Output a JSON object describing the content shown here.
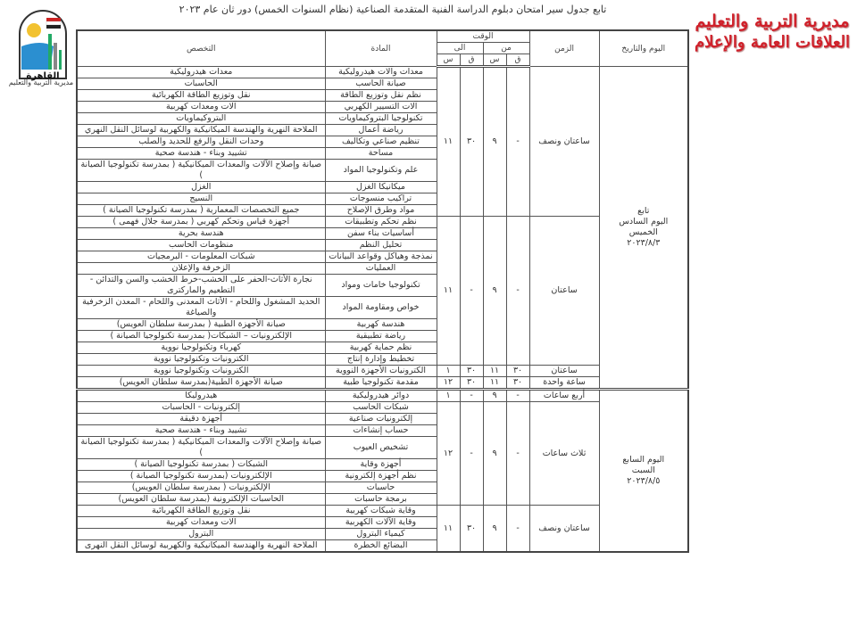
{
  "header": {
    "title": "تابع جدول سير امتحان دبلوم الدراسة الفنية المتقدمة الصناعية (نظام السنوات الخمس) دور ثان عام ٢٠٢٣",
    "brand_line1": "مديرية التربية والتعليم",
    "brand_line2": "العلاقات العامة والإعلام",
    "logo_text": "القاهرة",
    "logo_caption": "مديرية التربية والتعليم",
    "brand_color": "#d0202a"
  },
  "columns": {
    "day_date": "اليوم والتاريخ",
    "duration": "الزمن",
    "time": "الوقت",
    "from": "من",
    "to": "الى",
    "minute": "ق",
    "hour": "س",
    "subject": "المادة",
    "specialization": "التخصص"
  },
  "days": [
    {
      "label": [
        "تابع",
        "اليوم السادس",
        "الخميس",
        "٢٠٢٣/٨/٣"
      ],
      "groups": [
        {
          "duration": "ساعتان ونصف",
          "from_min": "-",
          "from_hr": "٩",
          "to_min": "٣٠",
          "to_hr": "١١",
          "rows": [
            {
              "subject": "معدات وآلات هيدروليكية",
              "specialization": "معدات هيدروليكية"
            },
            {
              "subject": "صيانة الحاسب",
              "specialization": "الحاسبات"
            },
            {
              "subject": "نظم نقل وتوزيع الطاقة",
              "specialization": "نقل وتوزيع الطاقة الكهربائية"
            },
            {
              "subject": "آلات التسيير الكهربي",
              "specialization": "آلات ومعدات كهربية"
            },
            {
              "subject": "تكنولوجيا البتروكيماويات",
              "specialization": "البتروكيماويات"
            },
            {
              "subject": "رياضة أعمال",
              "specialization": "الملاحة النهرية والهندسة الميكانيكية والكهربية لوسائل النقل النهري"
            },
            {
              "subject": "تنظيم صناعي وتكاليف",
              "specialization": "وحدات النقل والرفع للحديد والصلب"
            },
            {
              "subject": "مساحة",
              "specialization": "تشييد وبناء - هندسة صحية"
            },
            {
              "subject": "علم وتكنولوجيا المواد",
              "specialization": "صيانة وإصلاح الآلات والمعدات الميكانيكية ( بمدرسة تكنولوجيا الصيانة )"
            },
            {
              "subject": "ميكانيكا الغزل",
              "specialization": "الغزل"
            },
            {
              "subject": "تراكيب منسوجات",
              "specialization": "النسيج"
            },
            {
              "subject": "مواد وطرق الإصلاح",
              "specialization": "جميع التخصصات المعمارية ( بمدرسة تكنولوجيا الصيانة )"
            }
          ]
        },
        {
          "duration": "ساعتان",
          "from_min": "-",
          "from_hr": "٩",
          "to_min": "-",
          "to_hr": "١١",
          "rows": [
            {
              "subject": "نظم تحكم وتطبيقات",
              "specialization": "أجهزة قياس وتحكم كهربي ( بمدرسة جلال فهمى )"
            },
            {
              "subject": "أساسيات بناء سفن",
              "specialization": "هندسة بحرية"
            },
            {
              "subject": "تحليل النظم",
              "specialization": "منظومات الحاسب"
            },
            {
              "subject": "نمذجة وهياكل وقواعد البيانات",
              "specialization": "شبكات المعلومات - البرمجيات"
            },
            {
              "subject": "العمليات",
              "specialization": "الزخرفة والإعلان"
            },
            {
              "subject": "تكنولوجيا خامات ومواد",
              "specialization": "نجارة الأثاث-الحفر على الخشب-خرط الخشب والسن والتدائن - التطعيم والماركترى"
            },
            {
              "subject": "خواص ومقاومة المواد",
              "specialization": "الحديد المشغول واللحام - الأثاث المعدنى واللحام - المعدن الزخرفية والصياغة"
            },
            {
              "subject": "هندسة كهربية",
              "specialization": "صيانة الأجهزة الطبية ( بمدرسة سلطان العويس)"
            },
            {
              "subject": "رياضة تطبيقية",
              "specialization": "الإلكترونيات – الشبكات( بمدرسة تكنولوجيا الصيانة )"
            },
            {
              "subject": "نظم حماية كهربية",
              "specialization": "كهرباء وتكنولوجيا نووية"
            },
            {
              "subject": "تخطيط وإدارة إنتاج",
              "specialization": "الكترونيات وتكنولوجيا نووية"
            }
          ]
        },
        {
          "duration": "ساعتان",
          "from_min": "٣٠",
          "from_hr": "١١",
          "to_min": "٣٠",
          "to_hr": "١",
          "rows": [
            {
              "subject": "الكترونيات الأجهزة النووية",
              "specialization": "الكترونيات وتكنولوجيا نووية"
            }
          ]
        },
        {
          "duration": "ساعة واحدة",
          "from_min": "٣٠",
          "from_hr": "١١",
          "to_min": "٣٠",
          "to_hr": "١٢",
          "rows": [
            {
              "subject": "مقدمة تكنولوجيا طبية",
              "specialization": "صيانة الأجهزة الطبية(بمدرسة سلطان العويس)"
            }
          ]
        }
      ]
    },
    {
      "label": [
        "اليوم السابع",
        "السبت",
        "٢٠٢٣/٨/٥"
      ],
      "groups": [
        {
          "duration": "أربع ساعات",
          "from_min": "-",
          "from_hr": "٩",
          "to_min": "-",
          "to_hr": "١",
          "rows": [
            {
              "subject": "دوائر هيدروليكية",
              "specialization": "هيدروليكا"
            }
          ]
        },
        {
          "duration": "ثلاث ساعات",
          "from_min": "-",
          "from_hr": "٩",
          "to_min": "-",
          "to_hr": "١٢",
          "rows": [
            {
              "subject": "شبكات الحاسب",
              "specialization": "إلكترونيات - الحاسبات"
            },
            {
              "subject": "إلكترونيات صناعية",
              "specialization": "أجهزة دقيقة"
            },
            {
              "subject": "حساب إنشاءات",
              "specialization": "تشييد وبناء - هندسة صحية"
            },
            {
              "subject": "تشخيص العيوب",
              "specialization": "صيانة وإصلاح الآلات والمعدات الميكانيكية ( بمدرسة تكنولوجيا الصيانة )"
            },
            {
              "subject": "أجهزة وقاية",
              "specialization": "الشبكات ( بمدرسة تكنولوجيا الصيانة )"
            },
            {
              "subject": "نظم أجهزة إلكترونية",
              "specialization": "الإلكترونيات (بمدرسة تكنولوجيا الصيانة )"
            },
            {
              "subject": "حاسبات",
              "specialization": "الإلكترونيات ( بمدرسة سلطان العويس)"
            },
            {
              "subject": "برمجة حاسبات",
              "specialization": "الحاسبات الإلكترونية (بمدرسة سلطان العويس)"
            }
          ]
        },
        {
          "duration": "ساعتان ونصف",
          "from_min": "-",
          "from_hr": "٩",
          "to_min": "٣٠",
          "to_hr": "١١",
          "rows": [
            {
              "subject": "وقاية شبكات كهربية",
              "specialization": "نقل وتوزيع الطاقة الكهربائية"
            },
            {
              "subject": "وقاية الآلات الكهربية",
              "specialization": "آلات ومعدات كهربية"
            },
            {
              "subject": "كيمياء البترول",
              "specialization": "البترول"
            },
            {
              "subject": "البضائع الخطرة",
              "specialization": "الملاحة النهرية والهندسة الميكانيكية والكهربية لوسائل النقل النهرى"
            }
          ]
        }
      ]
    }
  ]
}
